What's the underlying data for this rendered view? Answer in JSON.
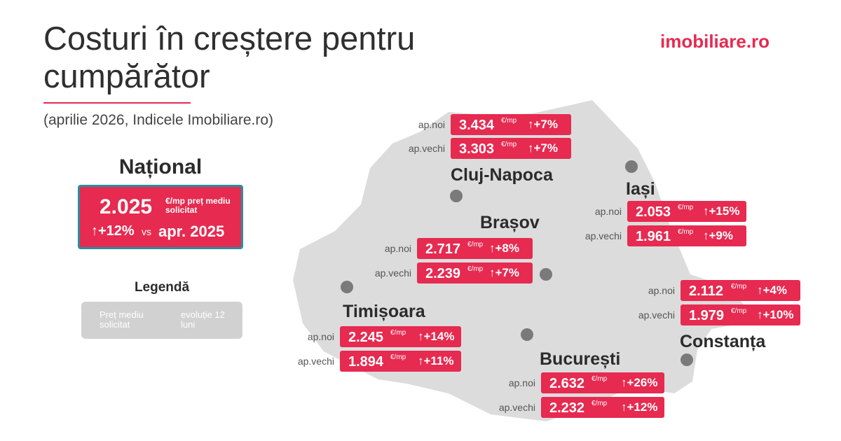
{
  "header": {
    "title_line1": "Costuri în creștere pentru",
    "title_line2": "cumpărător",
    "subtitle": "(aprilie 2026, Indicele Imobiliare.ro)",
    "logo": "imobiliare.ro"
  },
  "national": {
    "title": "Național",
    "price": "2.025",
    "unit": "€/mp preț mediu solicitat",
    "change": "+12%",
    "vs": "vs",
    "period": "apr. 2025"
  },
  "legend": {
    "title": "Legendă",
    "items": [
      "Preț mediu solicitat",
      "evoluție 12 luni"
    ]
  },
  "cities": [
    {
      "name": "Cluj-Napoca",
      "rows": [
        {
          "label": "ap.noi",
          "price": "3.434",
          "unit": "€/mp",
          "change": "+7%"
        },
        {
          "label": "ap.vechi",
          "price": "3.303",
          "unit": "€/mp",
          "change": "+7%"
        }
      ]
    },
    {
      "name": "Iași",
      "rows": [
        {
          "label": "ap.noi",
          "price": "2.053",
          "unit": "€/mp",
          "change": "+15%"
        },
        {
          "label": "ap.vechi",
          "price": "1.961",
          "unit": "€/mp",
          "change": "+9%"
        }
      ]
    },
    {
      "name": "Brașov",
      "rows": [
        {
          "label": "ap.noi",
          "price": "2.717",
          "unit": "€/mp",
          "change": "+8%"
        },
        {
          "label": "ap.vechi",
          "price": "2.239",
          "unit": "€/mp",
          "change": "+7%"
        }
      ]
    },
    {
      "name": "Timișoara",
      "rows": [
        {
          "label": "ap.noi",
          "price": "2.245",
          "unit": "€/mp",
          "change": "+14%"
        },
        {
          "label": "ap.vechi",
          "price": "1.894",
          "unit": "€/mp",
          "change": "+11%"
        }
      ]
    },
    {
      "name": "Constanța",
      "rows": [
        {
          "label": "ap.noi",
          "price": "2.112",
          "unit": "€/mp",
          "change": "+4%"
        },
        {
          "label": "ap.vechi",
          "price": "1.979",
          "unit": "€/mp",
          "change": "+10%"
        }
      ]
    },
    {
      "name": "București",
      "rows": [
        {
          "label": "ap.noi",
          "price": "2.632",
          "unit": "€/mp",
          "change": "+26%"
        },
        {
          "label": "ap.vechi",
          "price": "2.232",
          "unit": "€/mp",
          "change": "+12%"
        }
      ]
    }
  ]
}
